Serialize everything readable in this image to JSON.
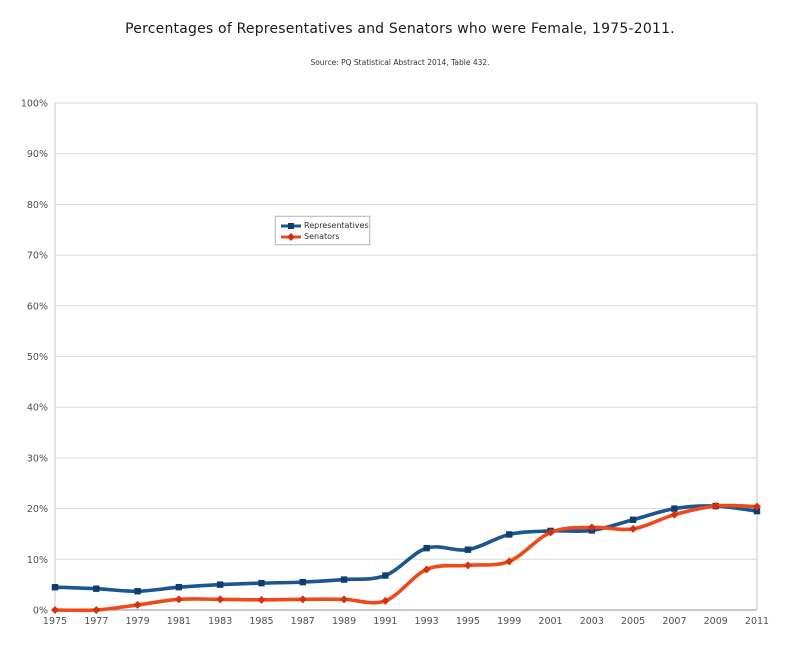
{
  "header": {
    "title": "Percentages of Representatives and Senators who were Female, 1975-2011.",
    "source": "Source: PQ Statistical Abstract 2014, Table 432."
  },
  "chart_data": {
    "type": "line",
    "title": "Percentages of Representatives and Senators who were Female, 1975-2011.",
    "subtitle": "Source: PQ Statistical Abstract 2014, Table 432.",
    "categories": [
      "1975",
      "1977",
      "1979",
      "1981",
      "1983",
      "1985",
      "1987",
      "1989",
      "1991",
      "1993",
      "1995",
      "1999",
      "2001",
      "2003",
      "2005",
      "2007",
      "2009",
      "2011"
    ],
    "series": [
      {
        "id": "representatives",
        "name": "Representatives",
        "color": "#1b5592",
        "marker_color": "#0f3e6e",
        "marker": "square",
        "values": [
          4.5,
          4.2,
          3.7,
          4.5,
          5.0,
          5.3,
          5.5,
          6.0,
          6.8,
          12.2,
          11.9,
          14.9,
          15.6,
          15.7,
          17.8,
          20.0,
          20.5,
          19.5
        ]
      },
      {
        "id": "senators",
        "name": "Senators",
        "color": "#f0491c",
        "marker_color": "#d2330e",
        "marker": "diamond",
        "values": [
          0.0,
          0.0,
          1.0,
          2.1,
          2.1,
          2.0,
          2.1,
          2.1,
          1.8,
          8.0,
          8.8,
          9.6,
          15.3,
          16.3,
          16.0,
          18.8,
          20.5,
          20.4
        ]
      }
    ],
    "xlabel": "",
    "ylabel": "",
    "ylim": [
      0,
      100
    ],
    "ytick_step": 10,
    "ytick_suffix": "%",
    "grid": "horizontal",
    "smoothed": true,
    "legend_position": "inside-upper-left"
  }
}
